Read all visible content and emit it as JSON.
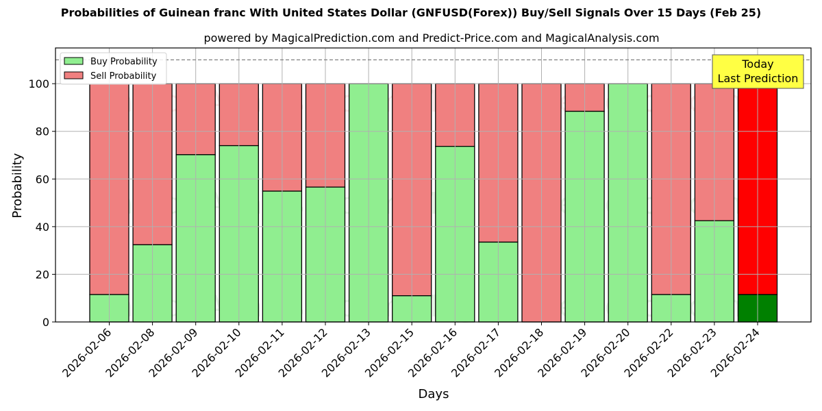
{
  "chart_data": {
    "type": "bar",
    "stacked": true,
    "title": "Probabilities of Guinean franc With United States Dollar (GNFUSD(Forex)) Buy/Sell Signals Over 15 Days (Feb 25)",
    "subtitle": "powered by MagicalPrediction.com and Predict-Price.com and MagicalAnalysis.com",
    "xlabel": "Days",
    "ylabel": "Probability",
    "ylim": [
      0,
      115
    ],
    "yticks": [
      0,
      20,
      40,
      60,
      80,
      100
    ],
    "grid": true,
    "legend_position": "upper left",
    "reference_line": {
      "y": 110,
      "style": "dashed",
      "color": "#808080"
    },
    "categories": [
      "2026-02-06",
      "2026-02-08",
      "2026-02-09",
      "2026-02-10",
      "2026-02-11",
      "2026-02-12",
      "2026-02-13",
      "2026-02-15",
      "2026-02-16",
      "2026-02-17",
      "2026-02-18",
      "2026-02-19",
      "2026-02-20",
      "2026-02-22",
      "2026-02-23",
      "2026-02-24"
    ],
    "series": [
      {
        "name": "Buy Probability",
        "color": "#90ee90",
        "values": [
          11.5,
          32.4,
          70.2,
          74.0,
          54.9,
          56.6,
          100,
          11.0,
          73.7,
          33.5,
          0,
          88.4,
          100,
          11.5,
          42.5,
          11.5
        ]
      },
      {
        "name": "Sell Probability",
        "color": "#f08080",
        "values": [
          88.5,
          67.6,
          29.8,
          26.0,
          45.1,
          43.4,
          0,
          89.0,
          26.3,
          66.5,
          100,
          11.6,
          0,
          88.5,
          57.5,
          88.5
        ]
      }
    ],
    "highlight": {
      "index": 15,
      "buy_color": "#008000",
      "sell_color": "#ff0000"
    },
    "annotation": {
      "lines": [
        "Today",
        "Last Prediction"
      ],
      "background": "#ffff44"
    },
    "watermarks": [
      "MagicalAnalysis.com",
      "MagicalPrediction.com"
    ]
  }
}
